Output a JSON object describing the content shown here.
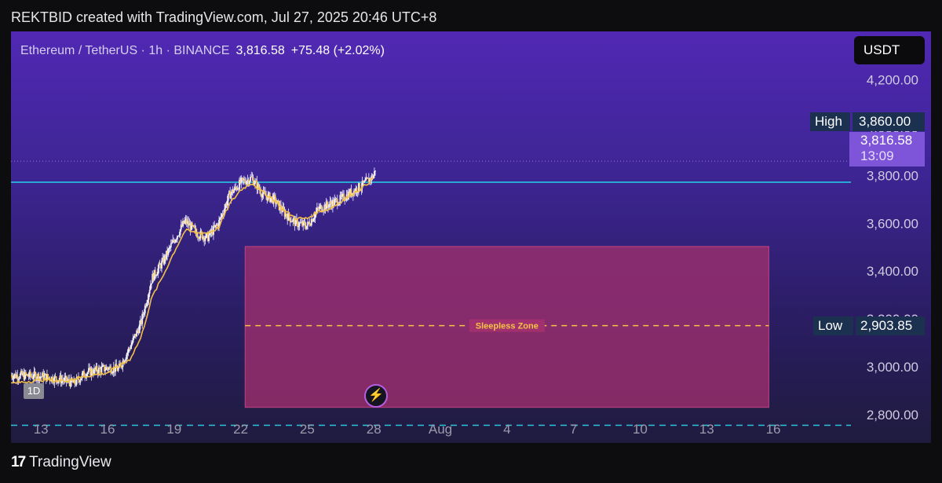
{
  "header": {
    "attribution": "REKTBID created with TradingView.com, Jul 27, 2025 20:46 UTC+8"
  },
  "symbol": {
    "title": "Ethereum / TetherUS · 1h · BINANCE",
    "price": "3,816.58",
    "change": "+75.48 (+2.02%)"
  },
  "currency_button": "USDT",
  "high": {
    "label": "High",
    "value": "3,860.00"
  },
  "low": {
    "label": "Low",
    "value": "2,903.85"
  },
  "last_price": {
    "value": "3,816.58",
    "countdown": "13:09"
  },
  "timeframe_badge": "1D",
  "footer": {
    "brand": "TradingView",
    "logo": "17"
  },
  "colors": {
    "candle": "#f2f0ff",
    "moving_average": "#f4c048",
    "support_line": "#2ad1e8",
    "dashed_low_line": "#2bc4d8",
    "zone_fill": "#a0306e",
    "zone_label": "#f6c445"
  },
  "chart_data": {
    "type": "candlestick",
    "y_ticks": [
      4200,
      4000,
      3800,
      3600,
      3400,
      3200,
      3000,
      2800
    ],
    "y_tick_labels": [
      "4,200.00",
      "4,000.00",
      "3,800.00",
      "3,600.00",
      "3,400.00",
      "3,200.00",
      "3,000.00",
      "2,800.00"
    ],
    "ylim": [
      2760,
      4370
    ],
    "x_tick_labels": [
      "13",
      "16",
      "19",
      "22",
      "25",
      "28",
      "Aug",
      "4",
      "7",
      "10",
      "13",
      "16"
    ],
    "x_tick_days": [
      0,
      3,
      6,
      9,
      12,
      15,
      18,
      21,
      24,
      27,
      30,
      33
    ],
    "xlim_days": [
      -1.35,
      36.5
    ],
    "price_path": [
      [
        -1.35,
        2965
      ],
      [
        0,
        2960
      ],
      [
        1,
        2945
      ],
      [
        1.5,
        2930
      ],
      [
        2,
        2975
      ],
      [
        3,
        2995
      ],
      [
        3.5,
        2990
      ],
      [
        4,
        3080
      ],
      [
        4.5,
        3180
      ],
      [
        5,
        3370
      ],
      [
        5.5,
        3440
      ],
      [
        6,
        3530
      ],
      [
        6.5,
        3610
      ],
      [
        7,
        3560
      ],
      [
        7.5,
        3540
      ],
      [
        8,
        3600
      ],
      [
        8.5,
        3720
      ],
      [
        9,
        3770
      ],
      [
        9.5,
        3790
      ],
      [
        10,
        3720
      ],
      [
        10.5,
        3700
      ],
      [
        11,
        3640
      ],
      [
        11.5,
        3600
      ],
      [
        12,
        3590
      ],
      [
        12.5,
        3660
      ],
      [
        13,
        3680
      ],
      [
        13.5,
        3700
      ],
      [
        14,
        3730
      ],
      [
        14.5,
        3760
      ],
      [
        15,
        3800
      ],
      [
        15.1,
        3845
      ]
    ],
    "ma_path": [
      [
        -1.35,
        2930
      ],
      [
        0,
        2945
      ],
      [
        1,
        2940
      ],
      [
        2,
        2960
      ],
      [
        3,
        2975
      ],
      [
        4,
        3030
      ],
      [
        4.5,
        3120
      ],
      [
        5,
        3290
      ],
      [
        5.5,
        3380
      ],
      [
        6,
        3480
      ],
      [
        6.5,
        3570
      ],
      [
        7,
        3560
      ],
      [
        7.5,
        3560
      ],
      [
        8,
        3580
      ],
      [
        8.5,
        3680
      ],
      [
        9,
        3740
      ],
      [
        9.5,
        3770
      ],
      [
        10,
        3730
      ],
      [
        10.5,
        3700
      ],
      [
        11,
        3650
      ],
      [
        11.5,
        3620
      ],
      [
        12,
        3620
      ],
      [
        12.5,
        3650
      ],
      [
        13,
        3660
      ],
      [
        13.5,
        3690
      ],
      [
        14,
        3720
      ],
      [
        14.5,
        3750
      ],
      [
        15,
        3790
      ]
    ],
    "support_level": 3772,
    "low_level": 2903.85,
    "high_level": 3860.0,
    "dashed_level": 2755,
    "zone": {
      "label": "Sleepless Zone",
      "top": 3503,
      "bottom": 2830,
      "midline": 3172,
      "start_day": 9.2,
      "end_day": 32.8
    }
  }
}
